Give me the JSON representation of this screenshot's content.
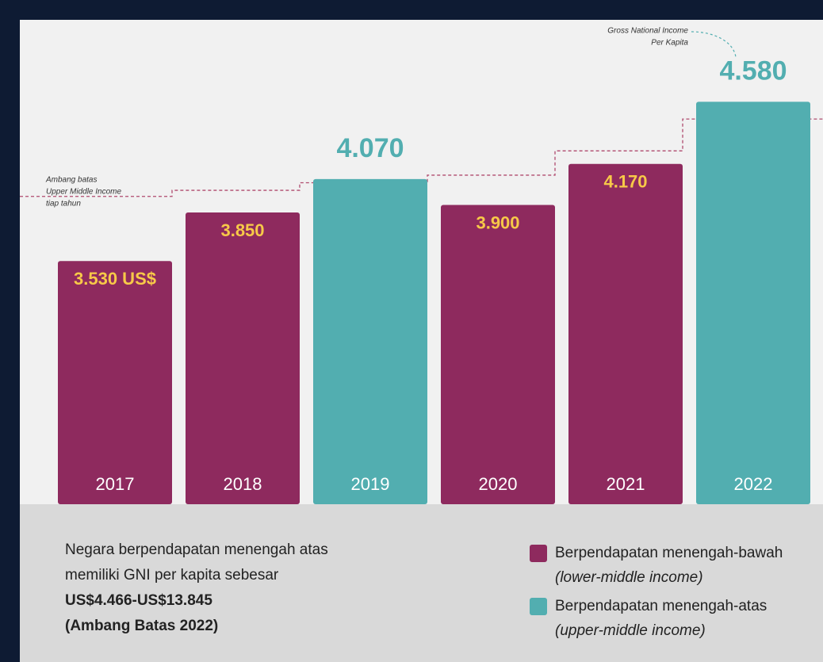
{
  "chart_data": {
    "type": "bar",
    "categories": [
      "2017",
      "2018",
      "2019",
      "2020",
      "2021",
      "2022"
    ],
    "values": [
      3530,
      3850,
      4070,
      3900,
      4170,
      4580
    ],
    "value_labels": [
      "3.530 US$",
      "3.850",
      "4.070",
      "3.900",
      "4.170",
      "4.580"
    ],
    "colors": [
      "#8e2a5e",
      "#8e2a5e",
      "#52aeb0",
      "#8e2a5e",
      "#8e2a5e",
      "#52aeb0"
    ],
    "label_color": "#f7c948",
    "ylim": [
      1927,
      5120
    ],
    "threshold": {
      "values": [
        3956,
        3996,
        4046,
        4096,
        4256,
        4466
      ],
      "color": "#b04a6e"
    },
    "annotations": {
      "threshold": [
        "Ambang batas",
        "Upper Middle Income",
        "tiap tahun"
      ],
      "gni": [
        "Gross National Income",
        "Per Kapita"
      ]
    },
    "note": [
      "Negara berpendapatan menengah atas",
      "memiliki GNI per kapita sebesar",
      "US$4.466-US$13.845",
      "(Ambang Batas 2022)"
    ],
    "legend": [
      {
        "name": "Berpendapatan menengah-bawah",
        "subtitle": "(lower-middle income)",
        "color": "#8e2a5e"
      },
      {
        "name": "Berpendapatan menengah-atas",
        "subtitle": "(upper-middle income)",
        "color": "#52aeb0"
      }
    ]
  }
}
